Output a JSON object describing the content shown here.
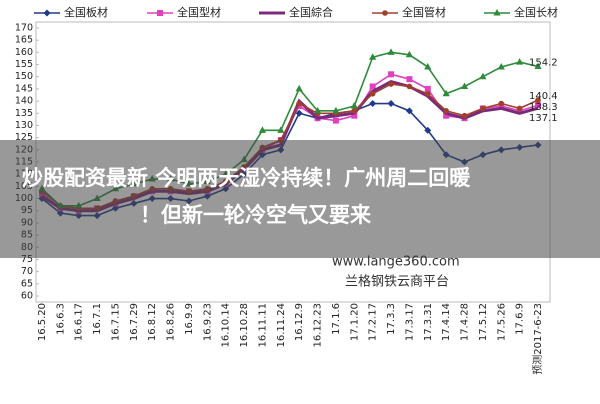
{
  "chart_data": {
    "type": "line",
    "categories": [
      "16.5.20",
      "16.6.3",
      "16.6.17",
      "16.7.1",
      "16.7.15",
      "16.7.29",
      "16.8.12",
      "16.8.26",
      "16.9.9",
      "16.9.23",
      "16.10.14",
      "16.10.28",
      "16.11.11",
      "16.11.24",
      "16.12.9",
      "16.12.23",
      "17.1.6",
      "17.1.20",
      "17.2.17",
      "17.3.3",
      "17.3.17",
      "17.3.31",
      "17.4.14",
      "17.4.28",
      "17.5.12",
      "17.5.26",
      "17.6.9",
      "预测2017-6-23"
    ],
    "series": [
      {
        "name": "全国板材",
        "color": "#1f3a8a",
        "marker": "diamond",
        "values": [
          100,
          94,
          93,
          93,
          96,
          98,
          100,
          100,
          99,
          101,
          104,
          110,
          118,
          120,
          135,
          133,
          135,
          136,
          139,
          139,
          136,
          128,
          118,
          115,
          118,
          120,
          121,
          122
        ]
      },
      {
        "name": "全国型材",
        "color": "#e040c0",
        "marker": "square",
        "show_last_label": true,
        "values": [
          102,
          96,
          95,
          96,
          98,
          101,
          103,
          103,
          103,
          103,
          106,
          112,
          120,
          124,
          138,
          133,
          132,
          134,
          146,
          151,
          149,
          145,
          134,
          133,
          137,
          138,
          136,
          138.3
        ]
      },
      {
        "name": "全国綜合",
        "color": "#7b2a7b",
        "marker": "none",
        "show_last_label": true,
        "values": [
          101,
          96,
          95,
          95,
          98,
          100,
          103,
          103,
          102,
          103,
          106,
          112,
          120,
          122,
          140,
          133,
          134,
          135,
          144,
          148,
          146,
          142,
          135,
          133,
          136,
          137,
          135,
          137.1
        ]
      },
      {
        "name": "全国管材",
        "color": "#a0402a",
        "marker": "circle",
        "show_last_label": true,
        "values": [
          103,
          97,
          96,
          96,
          99,
          101,
          104,
          104,
          103,
          104,
          107,
          113,
          121,
          124,
          139,
          135,
          135,
          136,
          143,
          147,
          146,
          143,
          136,
          134,
          137,
          139,
          137,
          140.4
        ]
      },
      {
        "name": "全国长材",
        "color": "#2e8b3a",
        "marker": "triangle",
        "show_last_label": true,
        "values": [
          104,
          97,
          97,
          100,
          104,
          106,
          108,
          108,
          106,
          107,
          110,
          116,
          128,
          128,
          145,
          136,
          136,
          138,
          158,
          160,
          159,
          154,
          143,
          146,
          150,
          154,
          156,
          154.2
        ]
      }
    ],
    "ylim": [
      60,
      170
    ],
    "yticks": [
      60,
      65,
      70,
      75,
      80,
      85,
      90,
      95,
      100,
      105,
      110,
      115,
      120,
      125,
      130,
      135,
      140,
      145,
      150,
      155,
      160,
      165,
      170
    ],
    "grid": false,
    "legend": "top"
  },
  "overlay": {
    "headline": [
      "炒股配资最新 今明两天湿冷持续！广州周二回暖",
      "！但新一轮冷空气又要来"
    ],
    "watermark": [
      "www.lange360.com",
      "兰格钢铁云商平台"
    ]
  }
}
